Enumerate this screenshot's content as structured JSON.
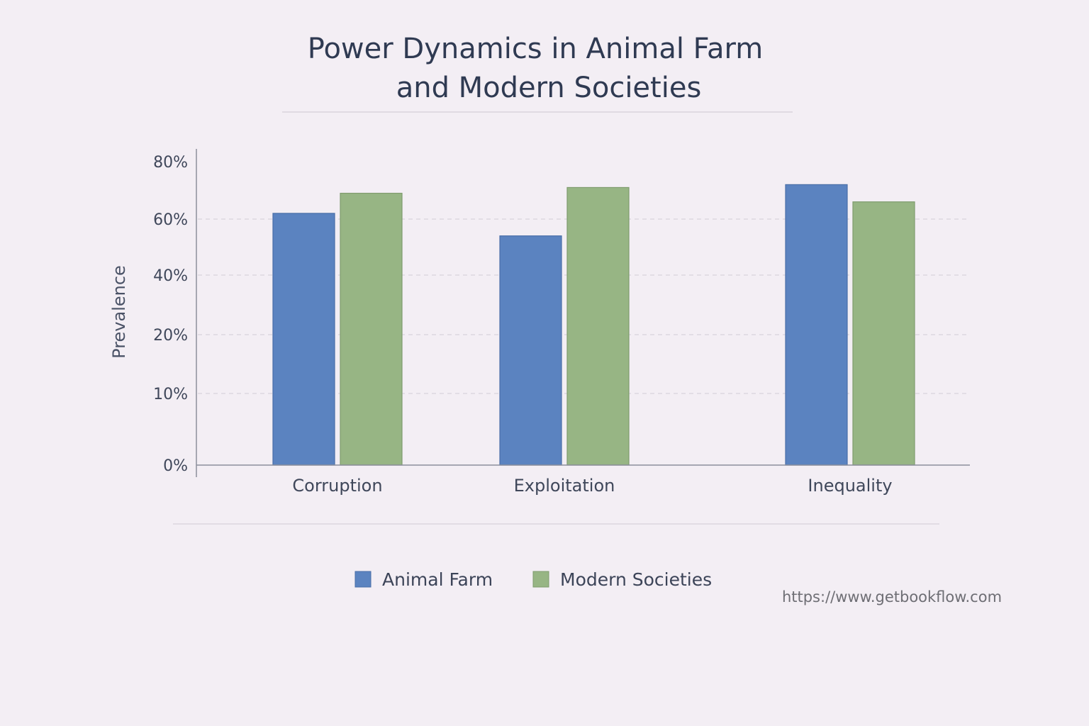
{
  "chart_data": {
    "type": "bar",
    "title_lines": [
      "Power Dynamics in Animal Farm",
      "and Modern Societies"
    ],
    "xlabel": "",
    "ylabel": "Prevalence",
    "categories": [
      "Corruption",
      "Exploitation",
      "Inequality"
    ],
    "series": [
      {
        "name": "Animal Farm",
        "color": "#5b83c0",
        "values": [
          62,
          54,
          72
        ]
      },
      {
        "name": "Modern Societies",
        "color": "#97b584",
        "values": [
          69,
          71,
          66
        ]
      }
    ],
    "y_ticks": [
      {
        "label": "0%",
        "value": 0
      },
      {
        "label": "10%",
        "value": 10
      },
      {
        "label": "20%",
        "value": 20
      },
      {
        "label": "40%",
        "value": 40
      },
      {
        "label": "60%",
        "value": 60
      },
      {
        "label": "80%",
        "value": 80
      }
    ],
    "ylim": [
      0,
      80
    ],
    "grid": true,
    "legend_position": "bottom-center"
  },
  "watermark": "https://www.getbookflow.com"
}
